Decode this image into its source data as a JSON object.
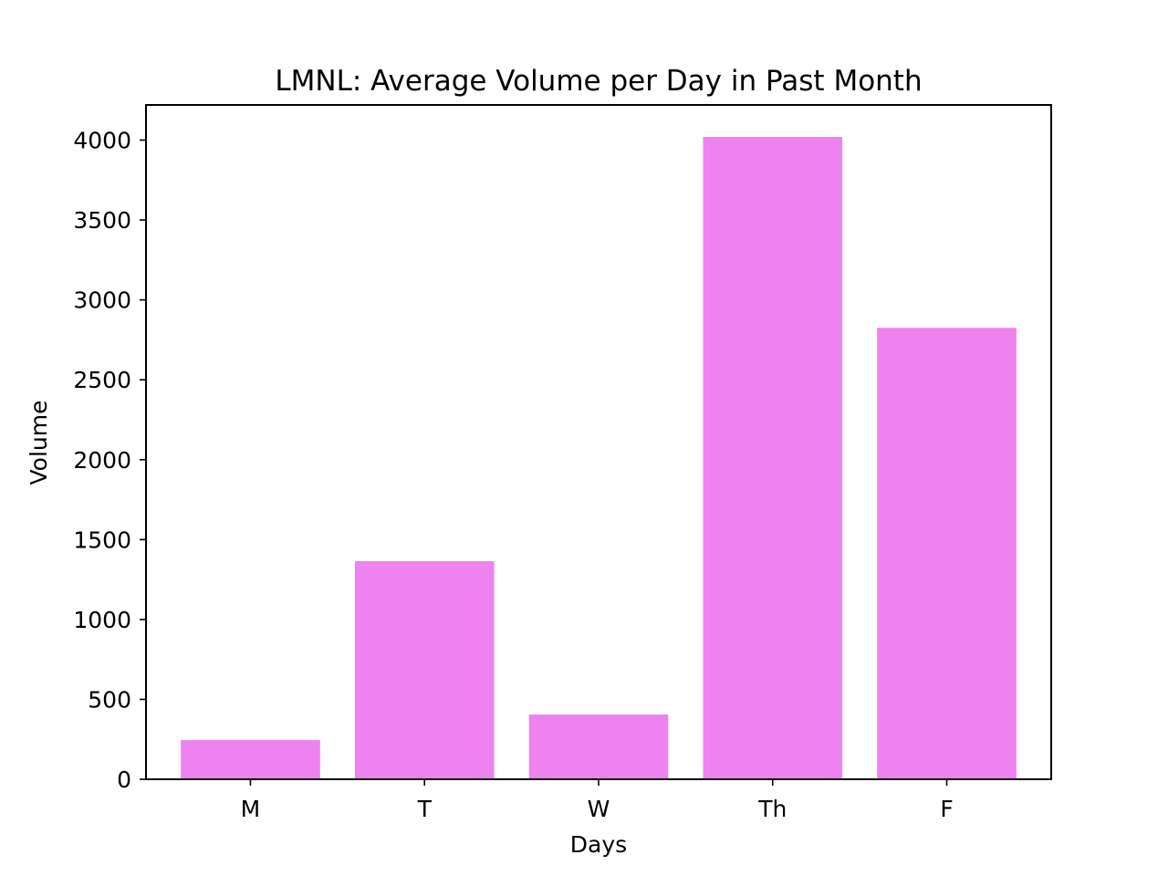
{
  "chart_data": {
    "type": "bar",
    "title": "LMNL: Average Volume per Day in Past Month",
    "xlabel": "Days",
    "ylabel": "Volume",
    "categories": [
      "M",
      "T",
      "W",
      "Th",
      "F"
    ],
    "values": [
      245,
      1365,
      405,
      4020,
      2825
    ],
    "ylim": [
      0,
      4220
    ],
    "yticks": [
      0,
      500,
      1000,
      1500,
      2000,
      2500,
      3000,
      3500,
      4000
    ],
    "bar_color": "#ee82ee",
    "grid": false,
    "legend": "none"
  }
}
